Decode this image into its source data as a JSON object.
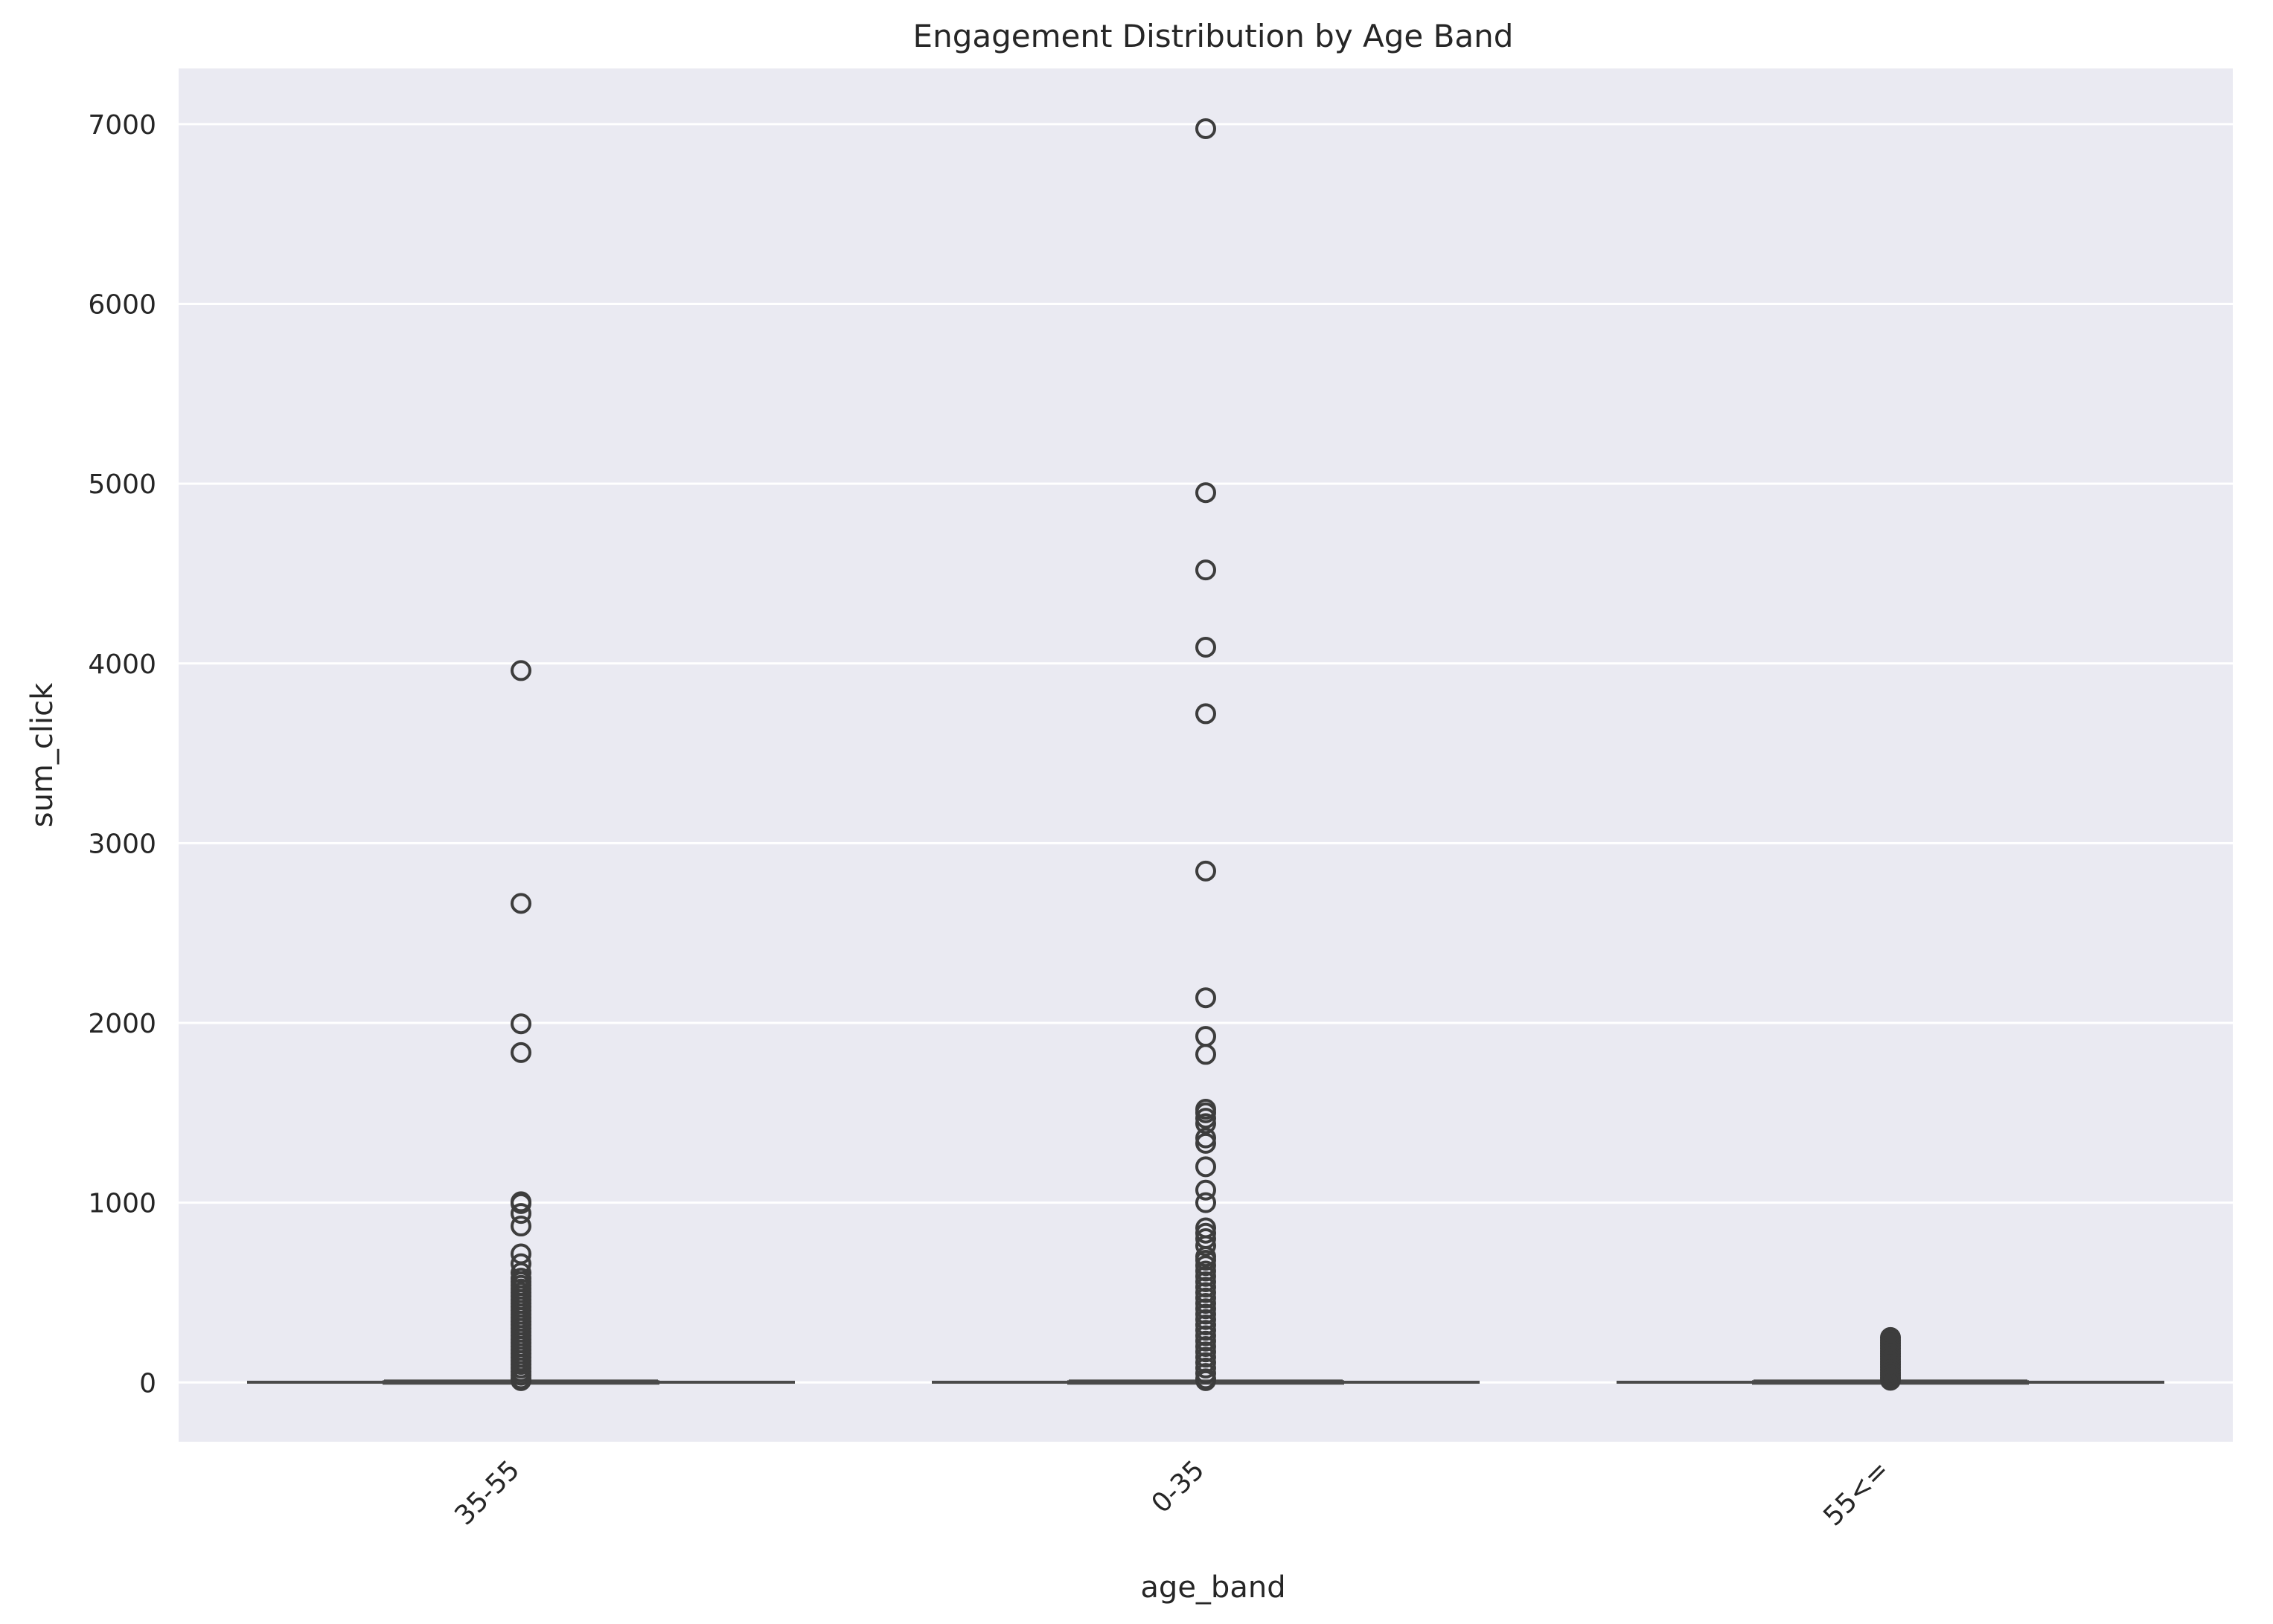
{
  "chart_data": {
    "type": "box",
    "title": "Engagement Distribution by Age Band",
    "xlabel": "age_band",
    "ylabel": "sum_click",
    "ylim": [
      -330,
      7310
    ],
    "yticks": [
      0,
      1000,
      2000,
      3000,
      4000,
      5000,
      6000,
      7000
    ],
    "grid": true,
    "background": "#eaeaf2",
    "categories": [
      "35-55",
      "0-35",
      "55<="
    ],
    "boxes": [
      {
        "category": "35-55",
        "whisker_low": 1,
        "q1": 1,
        "median": 2,
        "q3": 4,
        "whisker_high": 8,
        "outliers": [
          3960,
          2665,
          1995,
          1835,
          1005,
          995,
          940,
          870,
          715,
          660,
          610,
          580,
          560,
          540,
          520,
          500,
          480,
          460,
          440,
          420,
          400,
          380,
          360,
          340,
          320,
          300,
          280,
          260,
          240,
          220,
          200,
          180,
          160,
          140,
          120,
          100,
          80,
          60,
          40,
          20,
          10
        ]
      },
      {
        "category": "0-35",
        "whisker_low": 1,
        "q1": 1,
        "median": 2,
        "q3": 4,
        "whisker_high": 8,
        "outliers": [
          6975,
          4950,
          4520,
          4090,
          3720,
          2845,
          2140,
          1925,
          1825,
          1520,
          1500,
          1470,
          1440,
          1360,
          1330,
          1200,
          1070,
          1000,
          860,
          830,
          800,
          760,
          700,
          680,
          650,
          620,
          590,
          560,
          530,
          500,
          470,
          440,
          410,
          380,
          350,
          320,
          290,
          260,
          230,
          200,
          170,
          140,
          110,
          80,
          50,
          20,
          10
        ]
      },
      {
        "category": "55<=",
        "whisker_low": 1,
        "q1": 1,
        "median": 2,
        "q3": 4,
        "whisker_high": 8,
        "outliers": [
          250,
          235,
          220,
          205,
          190,
          175,
          160,
          145,
          130,
          115,
          100,
          85,
          70,
          55,
          40,
          25,
          12
        ]
      }
    ]
  }
}
